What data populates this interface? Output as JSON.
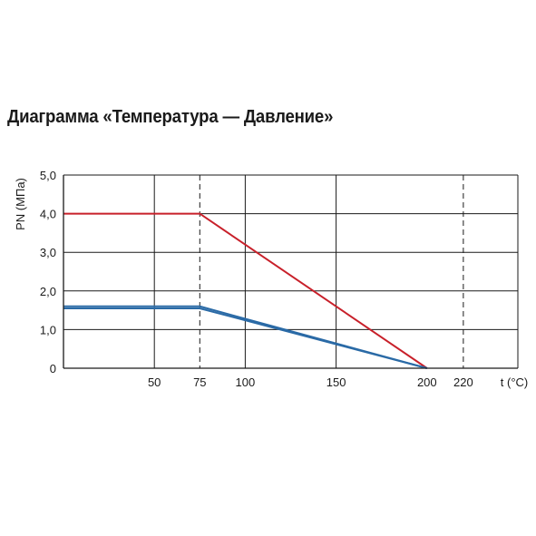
{
  "title": "Диаграмма «Температура — Давление»",
  "chart_data": {
    "type": "line",
    "title": "Диаграмма «Температура — Давление»",
    "xlabel": "t (°C)",
    "ylabel": "PN (МПа)",
    "xlim": [
      0,
      250
    ],
    "ylim": [
      0,
      5
    ],
    "x_ticks": [
      {
        "value": 50,
        "label": "50"
      },
      {
        "value": 75,
        "label": "75"
      },
      {
        "value": 100,
        "label": "100"
      },
      {
        "value": 150,
        "label": "150"
      },
      {
        "value": 200,
        "label": "200"
      },
      {
        "value": 220,
        "label": "220"
      }
    ],
    "y_ticks": [
      {
        "value": 0,
        "label": "0"
      },
      {
        "value": 1,
        "label": "1,0"
      },
      {
        "value": 2,
        "label": "2,0"
      },
      {
        "value": 3,
        "label": "3,0"
      },
      {
        "value": 4,
        "label": "4,0"
      },
      {
        "value": 5,
        "label": "5,0"
      }
    ],
    "solid_gridlines_x": [
      50,
      100,
      150,
      250
    ],
    "dashed_gridlines_x": [
      75,
      220
    ],
    "grid": true,
    "series": [
      {
        "color": "#c8202a",
        "points": [
          [
            0,
            4.0
          ],
          [
            75,
            4.0
          ],
          [
            200,
            0
          ]
        ]
      },
      {
        "color": "#2a6aa6",
        "points": [
          [
            0,
            1.6
          ],
          [
            75,
            1.6
          ],
          [
            200,
            0
          ]
        ]
      },
      {
        "color": "#2a6aa6",
        "points": [
          [
            0,
            1.55
          ],
          [
            75,
            1.55
          ],
          [
            200,
            0
          ]
        ]
      }
    ]
  }
}
